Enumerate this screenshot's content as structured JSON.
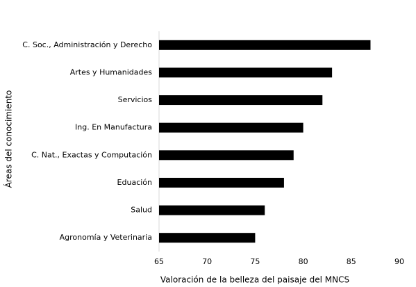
{
  "chart_data": {
    "type": "barh",
    "x_label": "Valoración de la belleza del paisaje del MNCS",
    "y_label": "Áreas del conocimiento",
    "categories": [
      "C. Soc., Administración y Derecho",
      "Artes y Humanidades",
      "Servicios",
      "Ing. En Manufactura",
      "C. Nat., Exactas y Computación",
      "Eduación",
      "Salud",
      "Agronomía y Veterinaria"
    ],
    "values": [
      87,
      83,
      82,
      80,
      79,
      78,
      76,
      75
    ],
    "color": "#000000",
    "xlim": [
      65,
      90
    ],
    "xticks": [
      65,
      70,
      75,
      80,
      85,
      90
    ],
    "grid": false
  }
}
